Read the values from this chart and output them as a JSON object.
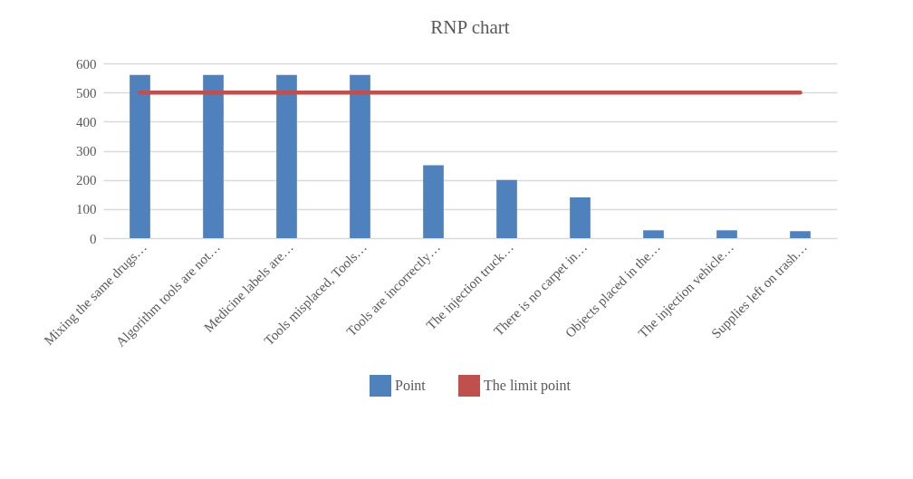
{
  "chart_data": {
    "type": "bar",
    "title": "RNP chart",
    "categories": [
      "Mixing the same drugs…",
      "Algorithm tools are not…",
      "Medicine labels are…",
      "Tools misplaced, Tools…",
      "Tools are incorrectly…",
      "The injection truck…",
      "There is no carpet in…",
      "Objects placed in the…",
      "The injection vehicle…",
      "Supplies left on trash…"
    ],
    "series": [
      {
        "name": "Point",
        "color": "#4f81bd",
        "values": [
          560,
          560,
          560,
          560,
          250,
          200,
          140,
          27,
          27,
          24
        ]
      },
      {
        "name": "The limit point",
        "type": "line",
        "color": "#c0504d",
        "values": [
          500,
          500,
          500,
          500,
          500,
          500,
          500,
          500,
          500,
          500
        ]
      }
    ],
    "ylim": [
      0,
      600
    ],
    "yticks": [
      0,
      100,
      200,
      300,
      400,
      500,
      600
    ],
    "grid": "y",
    "legend": "bottom"
  }
}
